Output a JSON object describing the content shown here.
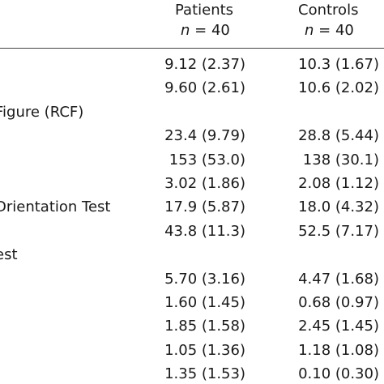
{
  "header": {
    "col1_title": "Patients",
    "col1_n": "40",
    "col2_title": "Controls",
    "col2_n": "40",
    "n_symbol": "n",
    "equals": "="
  },
  "rows": [
    {
      "label": "",
      "patients": "9.12 (2.37)",
      "controls": "10.3 (1.67)"
    },
    {
      "label": "̲)",
      "patients": "9.60 (2.61)",
      "controls": "10.6 (2.02)"
    },
    {
      "label": "Figure (RCF)",
      "patients": "",
      "controls": ""
    },
    {
      "label": "",
      "patients": "23.4 (9.79)",
      "controls": "28.8 (5.44)"
    },
    {
      "label": "",
      "patients": "153 (53.0)",
      "controls": "138 (30.1)"
    },
    {
      "label": "",
      "patients": "3.02 (1.86)",
      "controls": "2.08 (1.12)"
    },
    {
      "label": "Drientation Test",
      "patients": "17.9 (5.87)",
      "controls": "18.0 (4.32)"
    },
    {
      "label": "",
      "patients": "43.8 (11.3)",
      "controls": "52.5 (7.17)"
    },
    {
      "label": "est",
      "patients": "",
      "controls": ""
    },
    {
      "label": "",
      "patients": "5.70 (3.16)",
      "controls": "4.47 (1.68)"
    },
    {
      "label": "",
      "patients": "1.60 (1.45)",
      "controls": "0.68 (0.97)"
    },
    {
      "label": "",
      "patients": "1.85 (1.58)",
      "controls": "2.45 (1.45)"
    },
    {
      "label": "",
      "patients": "1.05 (1.36)",
      "controls": "1.18 (1.08)"
    },
    {
      "label": "",
      "patients": "1.35 (1.53)",
      "controls": "0.10 (0.30)"
    }
  ]
}
